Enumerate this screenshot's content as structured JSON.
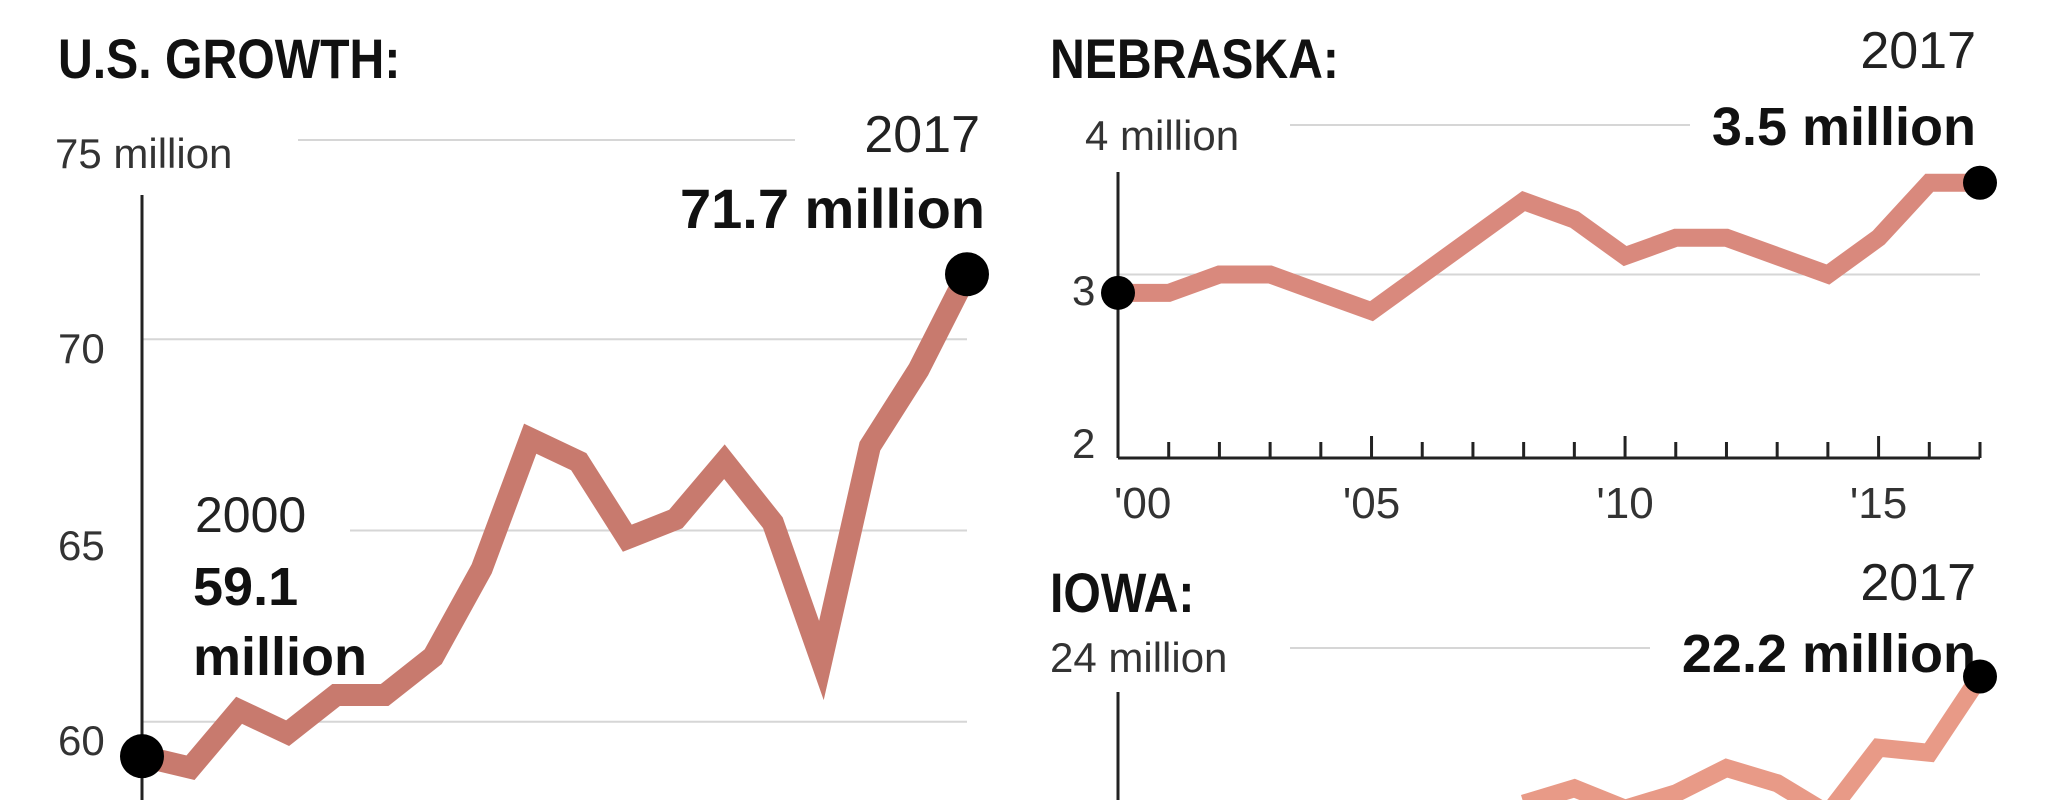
{
  "chart_data": [
    {
      "type": "line",
      "title": "U.S. GROWTH:",
      "unit_label": "75 million",
      "y_ticks": [
        "75 million",
        "70",
        "65",
        "60"
      ],
      "ylim": [
        59,
        75
      ],
      "xlim": [
        2000,
        2017
      ],
      "x": [
        2000,
        2001,
        2002,
        2003,
        2004,
        2005,
        2006,
        2007,
        2008,
        2009,
        2010,
        2011,
        2012,
        2013,
        2014,
        2015,
        2016,
        2017
      ],
      "series": [
        {
          "values": [
            59.1,
            58.8,
            60.3,
            59.7,
            60.7,
            60.7,
            61.7,
            64.0,
            67.4,
            66.8,
            64.8,
            65.3,
            66.8,
            65.2,
            61.6,
            67.2,
            69.2,
            71.7
          ],
          "color": "#c87a6e"
        }
      ],
      "start_annotation": {
        "year": "2000",
        "value": "59.1",
        "unit": "million"
      },
      "end_annotation": {
        "year": "2017",
        "value": "71.7 million"
      }
    },
    {
      "type": "line",
      "title": "NEBRASKA:",
      "unit_label": "4 million",
      "y_ticks": [
        "4 million",
        "3",
        "2"
      ],
      "ylim": [
        2,
        4
      ],
      "xlim": [
        2000,
        2017
      ],
      "x": [
        2000,
        2001,
        2002,
        2003,
        2004,
        2005,
        2006,
        2007,
        2008,
        2009,
        2010,
        2011,
        2012,
        2013,
        2014,
        2015,
        2016,
        2017
      ],
      "x_ticks": [
        "'00",
        "'05",
        "'10",
        "'15"
      ],
      "series": [
        {
          "values": [
            2.9,
            2.9,
            3.0,
            3.0,
            2.9,
            2.8,
            3.0,
            3.2,
            3.4,
            3.3,
            3.1,
            3.2,
            3.2,
            3.1,
            3.0,
            3.2,
            3.5,
            3.5
          ],
          "color": "#d9897d"
        }
      ],
      "end_annotation": {
        "year": "2017",
        "value": "3.5 million"
      }
    },
    {
      "type": "line",
      "title": "IOWA:",
      "unit_label": "24 million",
      "y_ticks": [
        "24 million"
      ],
      "ylim": [
        18,
        24
      ],
      "xlim": [
        2000,
        2017
      ],
      "x": [
        2008,
        2009,
        2010,
        2011,
        2012,
        2013,
        2014,
        2015,
        2016,
        2017
      ],
      "series": [
        {
          "values": [
            19.7,
            20.0,
            19.6,
            19.9,
            20.4,
            20.1,
            19.5,
            20.8,
            20.7,
            22.2
          ],
          "color": "#e89a87"
        }
      ],
      "end_annotation": {
        "year": "2017",
        "value": "22.2 million"
      }
    }
  ]
}
